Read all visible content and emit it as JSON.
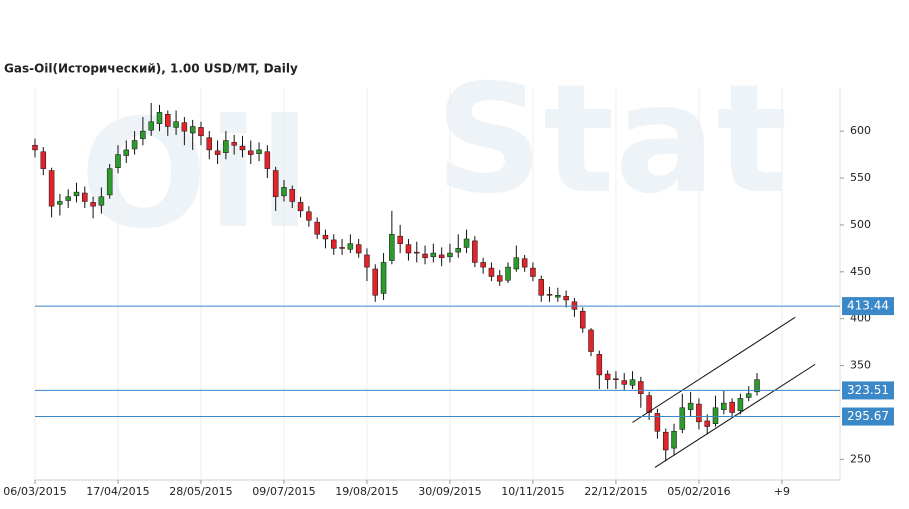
{
  "chart_data": {
    "type": "candlestick",
    "title": "Gas-Oil(Исторический), 1.00 USD/MT, Daily",
    "watermark": [
      "Oil",
      "Stat"
    ],
    "categories": [
      "06/03/2015",
      null,
      null,
      null,
      null,
      null,
      null,
      null,
      null,
      null,
      "17/04/2015",
      null,
      null,
      null,
      null,
      null,
      null,
      null,
      null,
      null,
      "28/05/2015",
      null,
      null,
      null,
      null,
      null,
      null,
      null,
      null,
      null,
      "09/07/2015",
      null,
      null,
      null,
      null,
      null,
      null,
      null,
      null,
      null,
      "19/08/2015",
      null,
      null,
      null,
      null,
      null,
      null,
      null,
      null,
      null,
      "30/09/2015",
      null,
      null,
      null,
      null,
      null,
      null,
      null,
      null,
      null,
      "10/11/2015",
      null,
      null,
      null,
      null,
      null,
      null,
      null,
      null,
      null,
      "22/12/2015",
      null,
      null,
      null,
      null,
      null,
      null,
      null,
      null,
      null,
      "05/02/2016",
      null,
      null,
      null,
      null,
      null,
      null,
      null,
      null,
      null,
      "+9"
    ],
    "open": [
      585,
      578,
      558,
      522,
      526,
      531,
      534,
      524,
      521,
      532,
      561,
      574,
      581,
      592,
      601,
      608,
      618,
      604,
      609,
      598,
      604,
      593,
      579,
      577,
      588,
      584,
      579,
      576,
      578,
      558,
      531,
      538,
      524,
      514,
      503,
      489,
      484,
      476,
      474,
      479,
      468,
      453,
      427,
      462,
      488,
      479,
      471,
      469,
      466,
      468,
      466,
      471,
      476,
      483,
      460,
      454,
      446,
      441,
      453,
      464,
      454,
      442,
      426,
      423,
      424,
      418,
      408,
      388,
      362,
      341,
      336,
      334,
      329,
      333,
      318,
      299,
      279,
      262,
      282,
      303,
      309,
      291,
      288,
      303,
      311,
      302,
      316,
      322,
      null,
      null,
      null
    ],
    "high": [
      592,
      583,
      561,
      533,
      538,
      545,
      541,
      530,
      540,
      565,
      585,
      590,
      600,
      615,
      630,
      628,
      622,
      622,
      615,
      612,
      610,
      600,
      590,
      600,
      596,
      595,
      590,
      588,
      585,
      562,
      548,
      542,
      530,
      520,
      508,
      495,
      490,
      485,
      490,
      485,
      475,
      458,
      470,
      515,
      500,
      485,
      482,
      478,
      480,
      476,
      480,
      490,
      495,
      488,
      465,
      460,
      452,
      460,
      478,
      468,
      460,
      446,
      434,
      433,
      430,
      422,
      412,
      390,
      366,
      345,
      344,
      342,
      344,
      338,
      322,
      304,
      283,
      288,
      320,
      322,
      315,
      298,
      318,
      323,
      315,
      320,
      328,
      342,
      null,
      null,
      null
    ],
    "low": [
      572,
      553,
      508,
      510,
      518,
      524,
      518,
      507,
      512,
      528,
      555,
      566,
      575,
      585,
      595,
      600,
      595,
      596,
      585,
      580,
      585,
      570,
      565,
      570,
      575,
      572,
      565,
      568,
      550,
      515,
      525,
      518,
      508,
      498,
      485,
      475,
      468,
      468,
      470,
      465,
      440,
      418,
      420,
      458,
      470,
      462,
      460,
      458,
      460,
      456,
      460,
      465,
      470,
      455,
      448,
      440,
      435,
      438,
      450,
      450,
      440,
      418,
      418,
      418,
      412,
      402,
      385,
      360,
      325,
      325,
      325,
      324,
      325,
      305,
      292,
      272,
      248,
      255,
      278,
      295,
      282,
      277,
      285,
      298,
      295,
      298,
      312,
      318,
      null,
      null,
      null
    ],
    "close": [
      580,
      560,
      520,
      525,
      530,
      535,
      525,
      520,
      530,
      560,
      575,
      580,
      590,
      600,
      610,
      620,
      605,
      610,
      600,
      605,
      595,
      580,
      575,
      590,
      585,
      580,
      575,
      580,
      560,
      530,
      540,
      525,
      515,
      505,
      490,
      485,
      475,
      475,
      480,
      470,
      455,
      425,
      460,
      490,
      480,
      470,
      470,
      465,
      470,
      465,
      470,
      475,
      485,
      460,
      455,
      445,
      440,
      455,
      465,
      455,
      445,
      425,
      425,
      425,
      420,
      410,
      390,
      365,
      340,
      335,
      335,
      330,
      335,
      320,
      300,
      280,
      260,
      280,
      305,
      310,
      290,
      285,
      305,
      310,
      300,
      315,
      320,
      335,
      null,
      null,
      null
    ],
    "up_color": "#2e9a2e",
    "down_color": "#e0242a",
    "xlim": [
      0,
      97
    ],
    "ylim": [
      228,
      646
    ],
    "yticks": [
      250,
      350,
      400,
      450,
      500,
      550,
      600
    ],
    "grid": true,
    "hlines": [
      {
        "value": 413.44,
        "color": "#3a88c8"
      },
      {
        "value": 323.51,
        "color": "#3a88c8"
      },
      {
        "value": 295.67,
        "color": "#3a88c8"
      }
    ],
    "trendlines": [
      {
        "x": [
          72.0,
          91.6
        ],
        "y": [
          289.4,
          401.5
        ]
      },
      {
        "x": [
          74.7,
          94.0
        ],
        "y": [
          241.4,
          351.3
        ]
      }
    ]
  }
}
